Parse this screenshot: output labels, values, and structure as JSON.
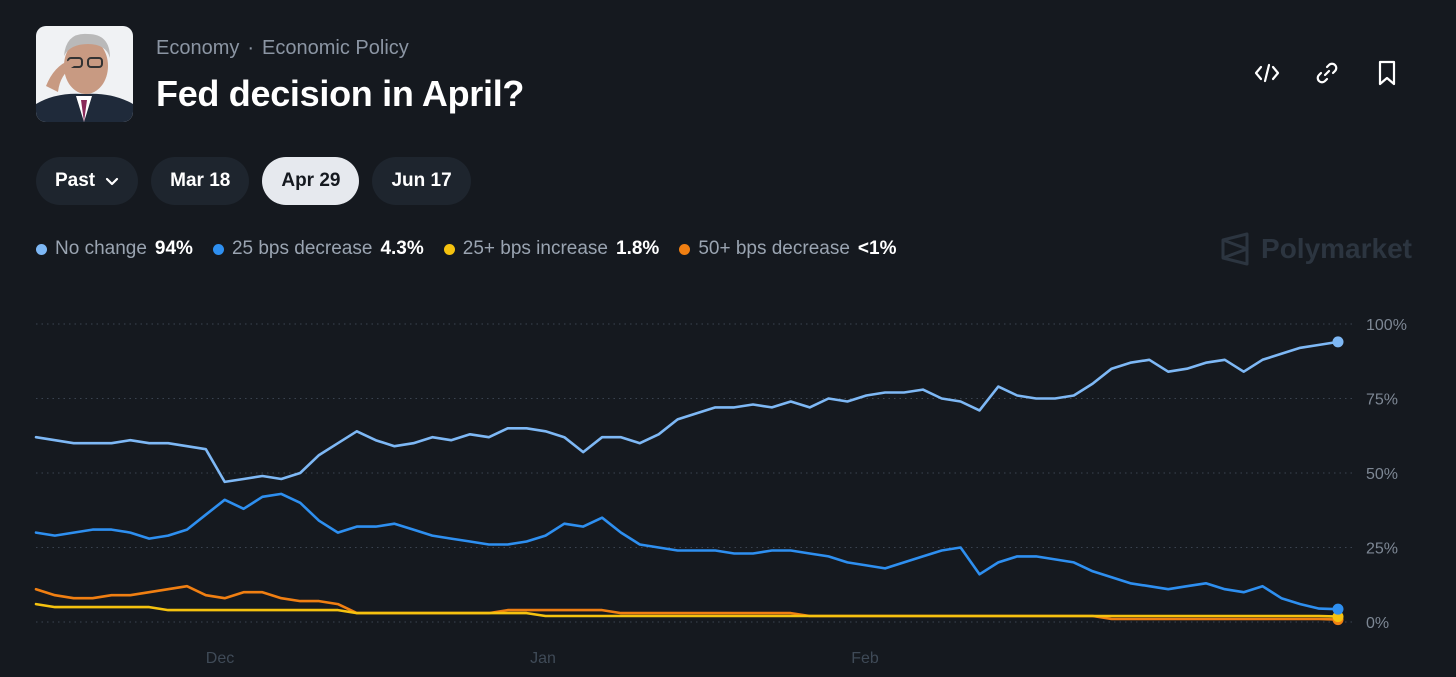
{
  "breadcrumb": {
    "category": "Economy",
    "separator": "·",
    "subcategory": "Economic Policy"
  },
  "title": "Fed decision in April?",
  "actions": [
    {
      "name": "embed-icon"
    },
    {
      "name": "link-icon"
    },
    {
      "name": "bookmark-icon"
    }
  ],
  "tabs": [
    {
      "label": "Past",
      "dropdown": true,
      "active": false
    },
    {
      "label": "Mar 18",
      "active": false
    },
    {
      "label": "Apr 29",
      "active": true
    },
    {
      "label": "Jun 17",
      "active": false
    }
  ],
  "brand": "Polymarket",
  "colors": {
    "no_change": "#7eb8f5",
    "decrease25": "#2e8ff0",
    "increase25": "#f5c20f",
    "decrease50": "#f07f12",
    "background": "#15191f"
  },
  "chart_data": {
    "type": "line",
    "x_ticks": [
      "Dec",
      "Jan",
      "Feb"
    ],
    "y_ticks": [
      "0%",
      "25%",
      "50%",
      "75%",
      "100%"
    ],
    "ylim": [
      0,
      100
    ],
    "grid": true,
    "legend_position": "top-left",
    "series": [
      {
        "name": "No change",
        "label": "94%",
        "color": "#7eb8f5",
        "values": [
          62,
          61,
          60,
          60,
          60,
          61,
          60,
          60,
          59,
          58,
          47,
          48,
          49,
          48,
          50,
          56,
          60,
          64,
          61,
          59,
          60,
          62,
          61,
          63,
          62,
          65,
          65,
          64,
          62,
          57,
          62,
          62,
          60,
          63,
          68,
          70,
          72,
          72,
          73,
          72,
          74,
          72,
          75,
          74,
          76,
          77,
          77,
          78,
          75,
          74,
          71,
          79,
          76,
          75,
          75,
          76,
          80,
          85,
          87,
          88,
          84,
          85,
          87,
          88,
          84,
          88,
          90,
          92,
          93,
          94
        ]
      },
      {
        "name": "25 bps decrease",
        "label": "4.3%",
        "color": "#2e8ff0",
        "values": [
          30,
          29,
          30,
          31,
          31,
          30,
          28,
          29,
          31,
          36,
          41,
          38,
          42,
          43,
          40,
          34,
          30,
          32,
          32,
          33,
          31,
          29,
          28,
          27,
          26,
          26,
          27,
          29,
          33,
          32,
          35,
          30,
          26,
          25,
          24,
          24,
          24,
          23,
          23,
          24,
          24,
          23,
          22,
          20,
          19,
          18,
          20,
          22,
          24,
          25,
          16,
          20,
          22,
          22,
          21,
          20,
          17,
          15,
          13,
          12,
          11,
          12,
          13,
          11,
          10,
          12,
          8,
          6,
          4.5,
          4.3
        ]
      },
      {
        "name": "25+ bps increase",
        "label": "1.8%",
        "color": "#f5c20f",
        "values": [
          6,
          5,
          5,
          5,
          5,
          5,
          5,
          4,
          4,
          4,
          4,
          4,
          4,
          4,
          4,
          4,
          4,
          3,
          3,
          3,
          3,
          3,
          3,
          3,
          3,
          3,
          3,
          2,
          2,
          2,
          2,
          2,
          2,
          2,
          2,
          2,
          2,
          2,
          2,
          2,
          2,
          2,
          2,
          2,
          2,
          2,
          2,
          2,
          2,
          2,
          2,
          2,
          2,
          2,
          2,
          2,
          2,
          2,
          2,
          2,
          2,
          2,
          2,
          2,
          2,
          2,
          2,
          2,
          2,
          1.8
        ]
      },
      {
        "name": "50+ bps decrease",
        "label": "<1%",
        "color": "#f07f12",
        "values": [
          11,
          9,
          8,
          8,
          9,
          9,
          10,
          11,
          12,
          9,
          8,
          10,
          10,
          8,
          7,
          7,
          6,
          3,
          3,
          3,
          3,
          3,
          3,
          3,
          3,
          4,
          4,
          4,
          4,
          4,
          4,
          3,
          3,
          3,
          3,
          3,
          3,
          3,
          3,
          3,
          3,
          2,
          2,
          2,
          2,
          2,
          2,
          2,
          2,
          2,
          2,
          2,
          2,
          2,
          2,
          2,
          2,
          1,
          1,
          1,
          1,
          1,
          1,
          1,
          1,
          1,
          1,
          1,
          1,
          0.8
        ]
      }
    ]
  }
}
